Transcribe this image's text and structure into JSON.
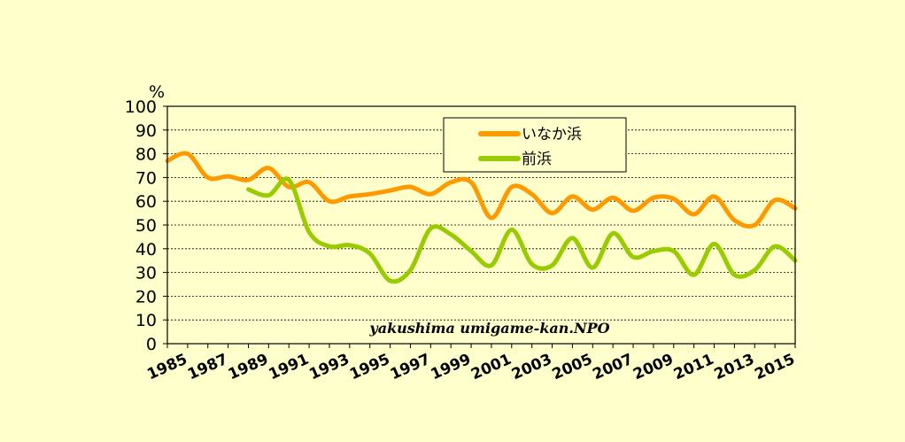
{
  "chart_data": {
    "type": "line",
    "y_unit": "%",
    "ylim": [
      0,
      100
    ],
    "y_ticks": [
      0,
      10,
      20,
      30,
      40,
      50,
      60,
      70,
      80,
      90,
      100
    ],
    "xlim": [
      1985,
      2016
    ],
    "x_tick_labels": [
      "1985",
      "1987",
      "1989",
      "1991",
      "1993",
      "1995",
      "1997",
      "1999",
      "2001",
      "2003",
      "2005",
      "2007",
      "2009",
      "2011",
      "2013",
      "2015"
    ],
    "grid": true,
    "legend_position": "top-center",
    "credit": "yakushima umigame-kan.NPO",
    "series": [
      {
        "name": "いなか浜",
        "color": "#ff9900",
        "x": [
          1985,
          1986,
          1987,
          1988,
          1989,
          1990,
          1991,
          1992,
          1993,
          1994,
          1995,
          1996,
          1997,
          1998,
          1999,
          2000,
          2001,
          2002,
          2003,
          2004,
          2005,
          2006,
          2007,
          2008,
          2009,
          2010,
          2011,
          2012,
          2013,
          2014,
          2015,
          2016
        ],
        "y": [
          77,
          80,
          70,
          70.5,
          69,
          74,
          66,
          68,
          60,
          62,
          63,
          64.5,
          66,
          63,
          68,
          68,
          53,
          66,
          63,
          55,
          62,
          56.5,
          61.5,
          56,
          61.5,
          61,
          54.5,
          62,
          52,
          50,
          60.5,
          57
        ]
      },
      {
        "name": "前浜",
        "color": "#99cc00",
        "x": [
          1989,
          1990,
          1991,
          1992,
          1993,
          1994,
          1995,
          1996,
          1997,
          1998,
          1999,
          2000,
          2001,
          2002,
          2003,
          2004,
          2005,
          2006,
          2007,
          2008,
          2009,
          2010,
          2011,
          2012,
          2013,
          2014,
          2015,
          2016
        ],
        "y": [
          65,
          62.5,
          69,
          47,
          41,
          41.5,
          38,
          26.5,
          31,
          48.5,
          46,
          39,
          33,
          48,
          33.5,
          33,
          44.5,
          32,
          46.5,
          36.5,
          39,
          39,
          29,
          42,
          29,
          31,
          41,
          35
        ]
      }
    ]
  }
}
